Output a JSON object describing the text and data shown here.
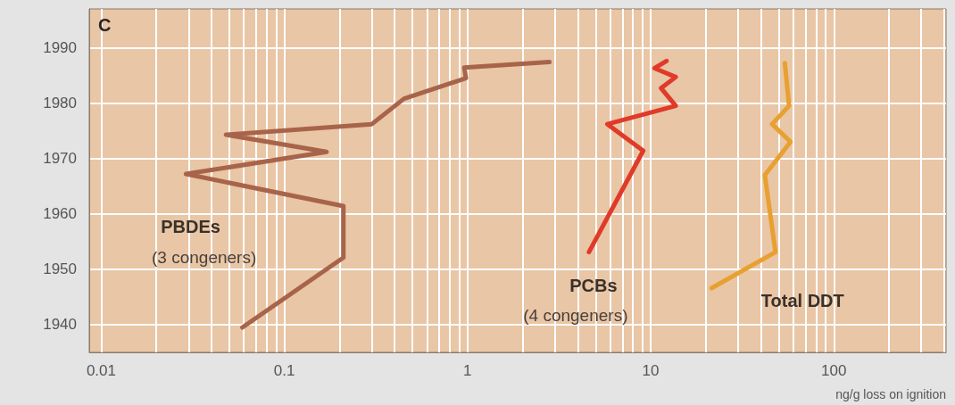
{
  "chart_data": {
    "type": "line",
    "xlabel": "ng/g loss on ignition",
    "log": "x",
    "grid": true,
    "line_style": "solid",
    "marker": "none",
    "xlim": [
      0.0086,
      410
    ],
    "ylim": [
      1935,
      1997
    ],
    "xticks": [
      0.01,
      {
        "value": 0.02,
        "label": null
      },
      {
        "value": 0.03,
        "label": null
      },
      {
        "value": 0.04,
        "label": null
      },
      {
        "value": 0.05,
        "label": null
      },
      {
        "value": 0.06,
        "label": null
      },
      {
        "value": 0.07,
        "label": null
      },
      {
        "value": 0.08,
        "label": null
      },
      {
        "value": 0.09,
        "label": null
      },
      0.1,
      {
        "value": 0.2,
        "label": null
      },
      {
        "value": 0.3,
        "label": null
      },
      {
        "value": 0.4,
        "label": null
      },
      {
        "value": 0.5,
        "label": null
      },
      {
        "value": 0.6,
        "label": null
      },
      {
        "value": 0.7,
        "label": null
      },
      {
        "value": 0.8,
        "label": null
      },
      {
        "value": 0.9,
        "label": null
      },
      1,
      {
        "value": 2,
        "label": null
      },
      {
        "value": 3,
        "label": null
      },
      {
        "value": 4,
        "label": null
      },
      {
        "value": 5,
        "label": null
      },
      {
        "value": 6,
        "label": null
      },
      {
        "value": 7,
        "label": null
      },
      {
        "value": 8,
        "label": null
      },
      {
        "value": 9,
        "label": null
      },
      10,
      {
        "value": 20,
        "label": null
      },
      {
        "value": 30,
        "label": null
      },
      {
        "value": 40,
        "label": null
      },
      {
        "value": 50,
        "label": null
      },
      {
        "value": 60,
        "label": null
      },
      {
        "value": 70,
        "label": null
      },
      {
        "value": 80,
        "label": null
      },
      {
        "value": 90,
        "label": null
      },
      100,
      {
        "value": 200,
        "label": null
      },
      {
        "value": 300,
        "label": null
      },
      {
        "value": 400,
        "label": null
      }
    ],
    "yticks": [
      1940,
      1950,
      1960,
      1970,
      1980,
      1990
    ],
    "series": [
      {
        "name": "PBDEs",
        "color": "#a8644a",
        "x": [
          0.059,
          0.21,
          0.21,
          0.029,
          0.17,
          0.048,
          0.3,
          0.45,
          0.98,
          0.96,
          2.8
        ],
        "values": [
          1939.5,
          1952.1,
          1961.4,
          1967.2,
          1971.2,
          1974.3,
          1976.2,
          1980.8,
          1984.5,
          1986.4,
          1987.4
        ]
      },
      {
        "name": "PCBs",
        "color": "#e03a2a",
        "x": [
          4.6,
          9.1,
          5.8,
          13.7,
          11.4,
          13.7,
          10.5,
          12.2
        ],
        "values": [
          1953.1,
          1971.4,
          1976.2,
          1979.5,
          1982.7,
          1984.7,
          1986.3,
          1987.6
        ]
      },
      {
        "name": "Total DDT",
        "color": "#e8a030",
        "x": [
          21.5,
          48,
          42,
          58,
          46,
          57,
          54
        ],
        "values": [
          1946.6,
          1953.1,
          1967,
          1973,
          1976.2,
          1979.5,
          1987.2
        ]
      }
    ],
    "annotations": [
      "C",
      "(3 congeners)",
      "(4 congeners)"
    ]
  }
}
